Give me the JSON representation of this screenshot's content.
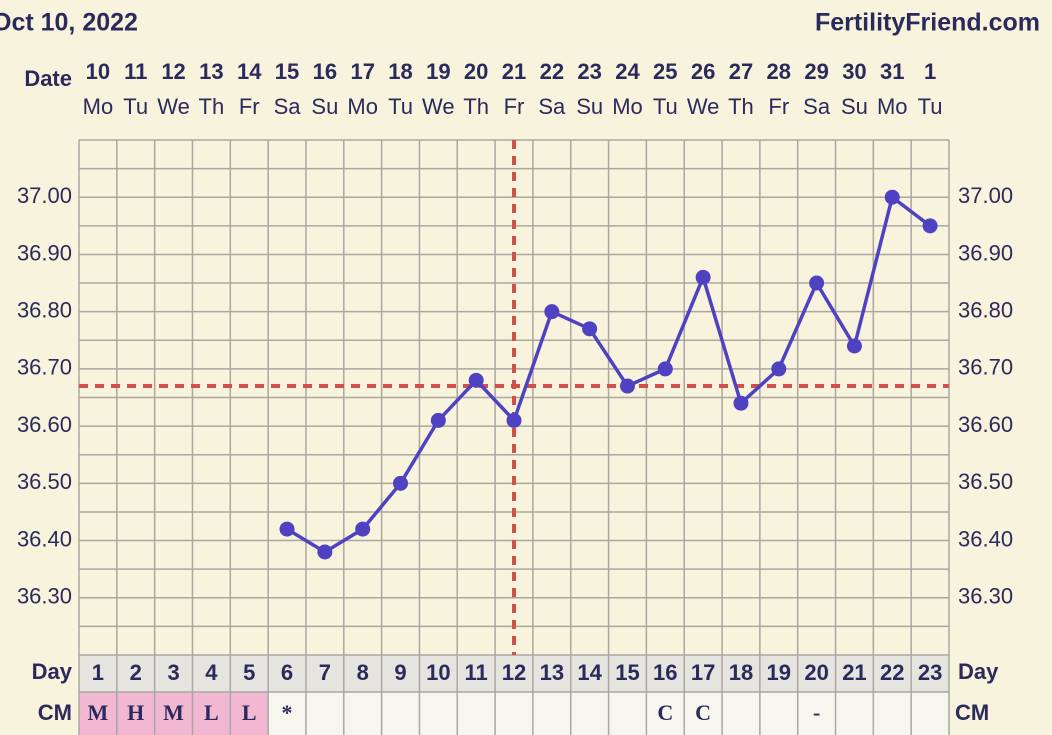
{
  "chart_data": {
    "type": "line",
    "title": "Oct 10, 2022",
    "source": "FertilityFriend.com",
    "date_label": "Date",
    "day_label": "Day",
    "cm_label": "CM",
    "dates": [
      "10",
      "11",
      "12",
      "13",
      "14",
      "15",
      "16",
      "17",
      "18",
      "19",
      "20",
      "21",
      "22",
      "23",
      "24",
      "25",
      "26",
      "27",
      "28",
      "29",
      "30",
      "31",
      "1"
    ],
    "weekdays": [
      "Mo",
      "Tu",
      "We",
      "Th",
      "Fr",
      "Sa",
      "Su",
      "Mo",
      "Tu",
      "We",
      "Th",
      "Fr",
      "Sa",
      "Su",
      "Mo",
      "Tu",
      "We",
      "Th",
      "Fr",
      "Sa",
      "Su",
      "Mo",
      "Tu"
    ],
    "categories": [
      1,
      2,
      3,
      4,
      5,
      6,
      7,
      8,
      9,
      10,
      11,
      12,
      13,
      14,
      15,
      16,
      17,
      18,
      19,
      20,
      21,
      22,
      23
    ],
    "values": [
      null,
      null,
      null,
      null,
      null,
      36.42,
      36.38,
      36.42,
      36.5,
      36.61,
      36.68,
      36.61,
      36.8,
      36.77,
      36.67,
      36.7,
      36.86,
      36.64,
      36.7,
      36.85,
      36.74,
      37.0,
      36.95
    ],
    "color": "#4f42c2",
    "cm": [
      "M",
      "H",
      "M",
      "L",
      "L",
      "*",
      null,
      null,
      null,
      null,
      null,
      null,
      null,
      null,
      null,
      "C",
      "C",
      null,
      null,
      "-",
      null,
      null,
      null
    ],
    "highlighted_days": [
      1,
      2,
      3,
      4,
      5
    ],
    "highlight_color": "#f2b8d2",
    "coverline": 36.67,
    "ovulation_day": 12,
    "marker_line_color": "#d24f4a",
    "ylim": [
      36.2,
      37.1
    ],
    "yticks": [
      {
        "value": 36.3,
        "label": "36.30"
      },
      {
        "value": 36.4,
        "label": "36.40"
      },
      {
        "value": 36.5,
        "label": "36.50"
      },
      {
        "value": 36.6,
        "label": "36.60"
      },
      {
        "value": 36.7,
        "label": "36.70"
      },
      {
        "value": 36.8,
        "label": "36.80"
      },
      {
        "value": 36.9,
        "label": "36.90"
      },
      {
        "value": 37.0,
        "label": "37.00"
      }
    ],
    "minor_yticks": [
      36.25,
      36.35,
      36.45,
      36.55,
      36.65,
      36.75,
      36.85,
      36.95,
      37.05
    ],
    "grid": true
  }
}
